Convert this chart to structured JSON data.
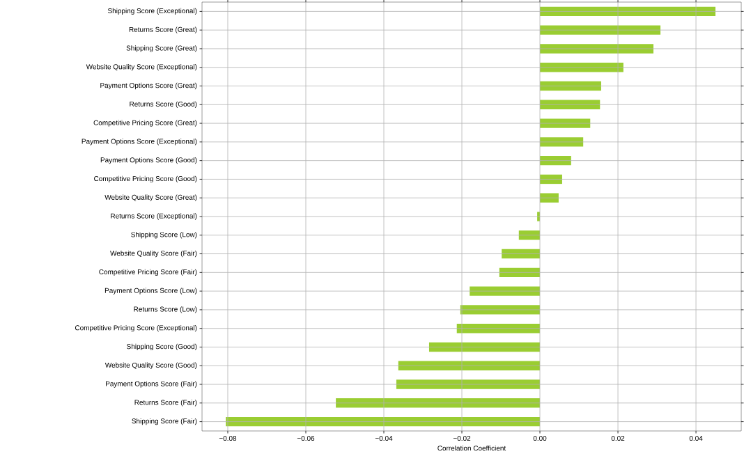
{
  "chart_data": {
    "type": "bar",
    "orientation": "horizontal",
    "xlabel": "Correlation Coefficient",
    "categories": [
      "Shipping Score (Exceptional)",
      "Returns Score (Great)",
      "Shipping Score (Great)",
      "Website Quality Score (Exceptional)",
      "Payment Options Score (Great)",
      "Returns Score (Good)",
      "Competitive Pricing Score (Great)",
      "Payment Options Score (Exceptional)",
      "Payment Options Score (Good)",
      "Competitive Pricing Score (Good)",
      "Website Quality Score (Great)",
      "Returns Score (Exceptional)",
      "Shipping Score (Low)",
      "Website Quality Score (Fair)",
      "Competitive Pricing Score (Fair)",
      "Payment Options Score (Low)",
      "Returns Score (Low)",
      "Competitive Pricing Score (Exceptional)",
      "Shipping Score (Good)",
      "Website Quality Score (Good)",
      "Payment Options Score (Fair)",
      "Returns Score (Fair)",
      "Shipping Score (Fair)"
    ],
    "values": [
      0.045,
      0.0309,
      0.0291,
      0.0214,
      0.0157,
      0.0154,
      0.0129,
      0.0111,
      0.008,
      0.0057,
      0.0048,
      -0.0007,
      -0.0054,
      -0.0098,
      -0.0104,
      -0.018,
      -0.0204,
      -0.0213,
      -0.0284,
      -0.0363,
      -0.0368,
      -0.0523,
      -0.0805
    ],
    "color": "#9acd32",
    "xlim": [
      -0.0866,
      0.0516
    ],
    "xticks": [
      {
        "value": -0.08,
        "label": "−0.08"
      },
      {
        "value": -0.06,
        "label": "−0.06"
      },
      {
        "value": -0.04,
        "label": "−0.04"
      },
      {
        "value": -0.02,
        "label": "−0.02"
      },
      {
        "value": 0,
        "label": "0.00"
      },
      {
        "value": 0.02,
        "label": "0.02"
      },
      {
        "value": 0.04,
        "label": "0.04"
      }
    ],
    "grid": true
  }
}
